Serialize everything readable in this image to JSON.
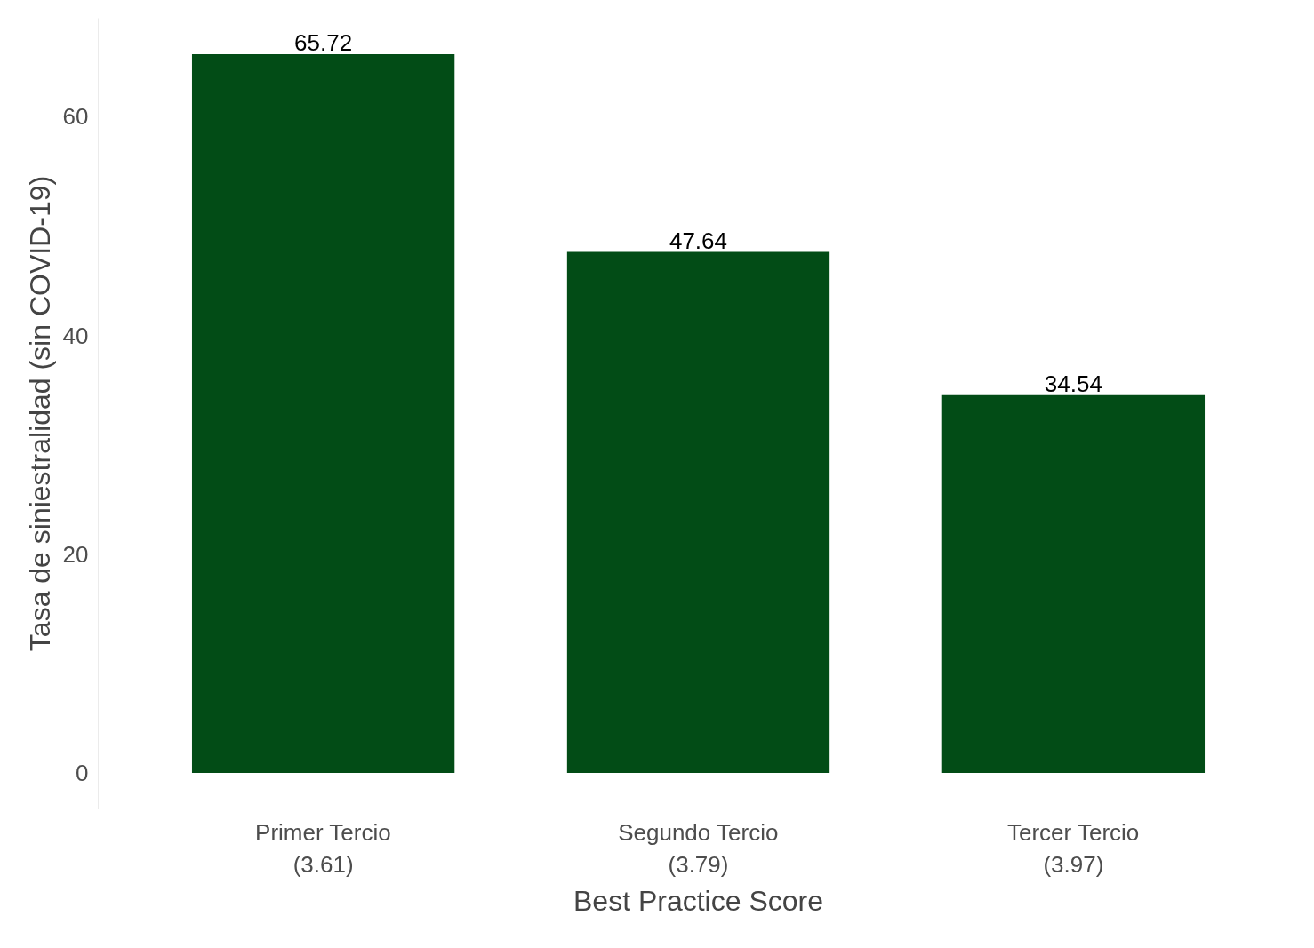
{
  "chart_data": {
    "type": "bar",
    "xlabel": "Best Practice Score",
    "ylabel": "Tasa de siniestralidad (sin COVID-19)",
    "categories": [
      "Primer Tercio\n(3.61)",
      "Segundo Tercio\n(3.79)",
      "Tercer Tercio\n(3.97)"
    ],
    "values": [
      65.72,
      47.64,
      34.54
    ],
    "color": "#024c16",
    "ylim": [
      -3.29,
      69.01
    ],
    "yticks": [
      0,
      20,
      40,
      60
    ],
    "grid": false,
    "data_labels": true
  }
}
